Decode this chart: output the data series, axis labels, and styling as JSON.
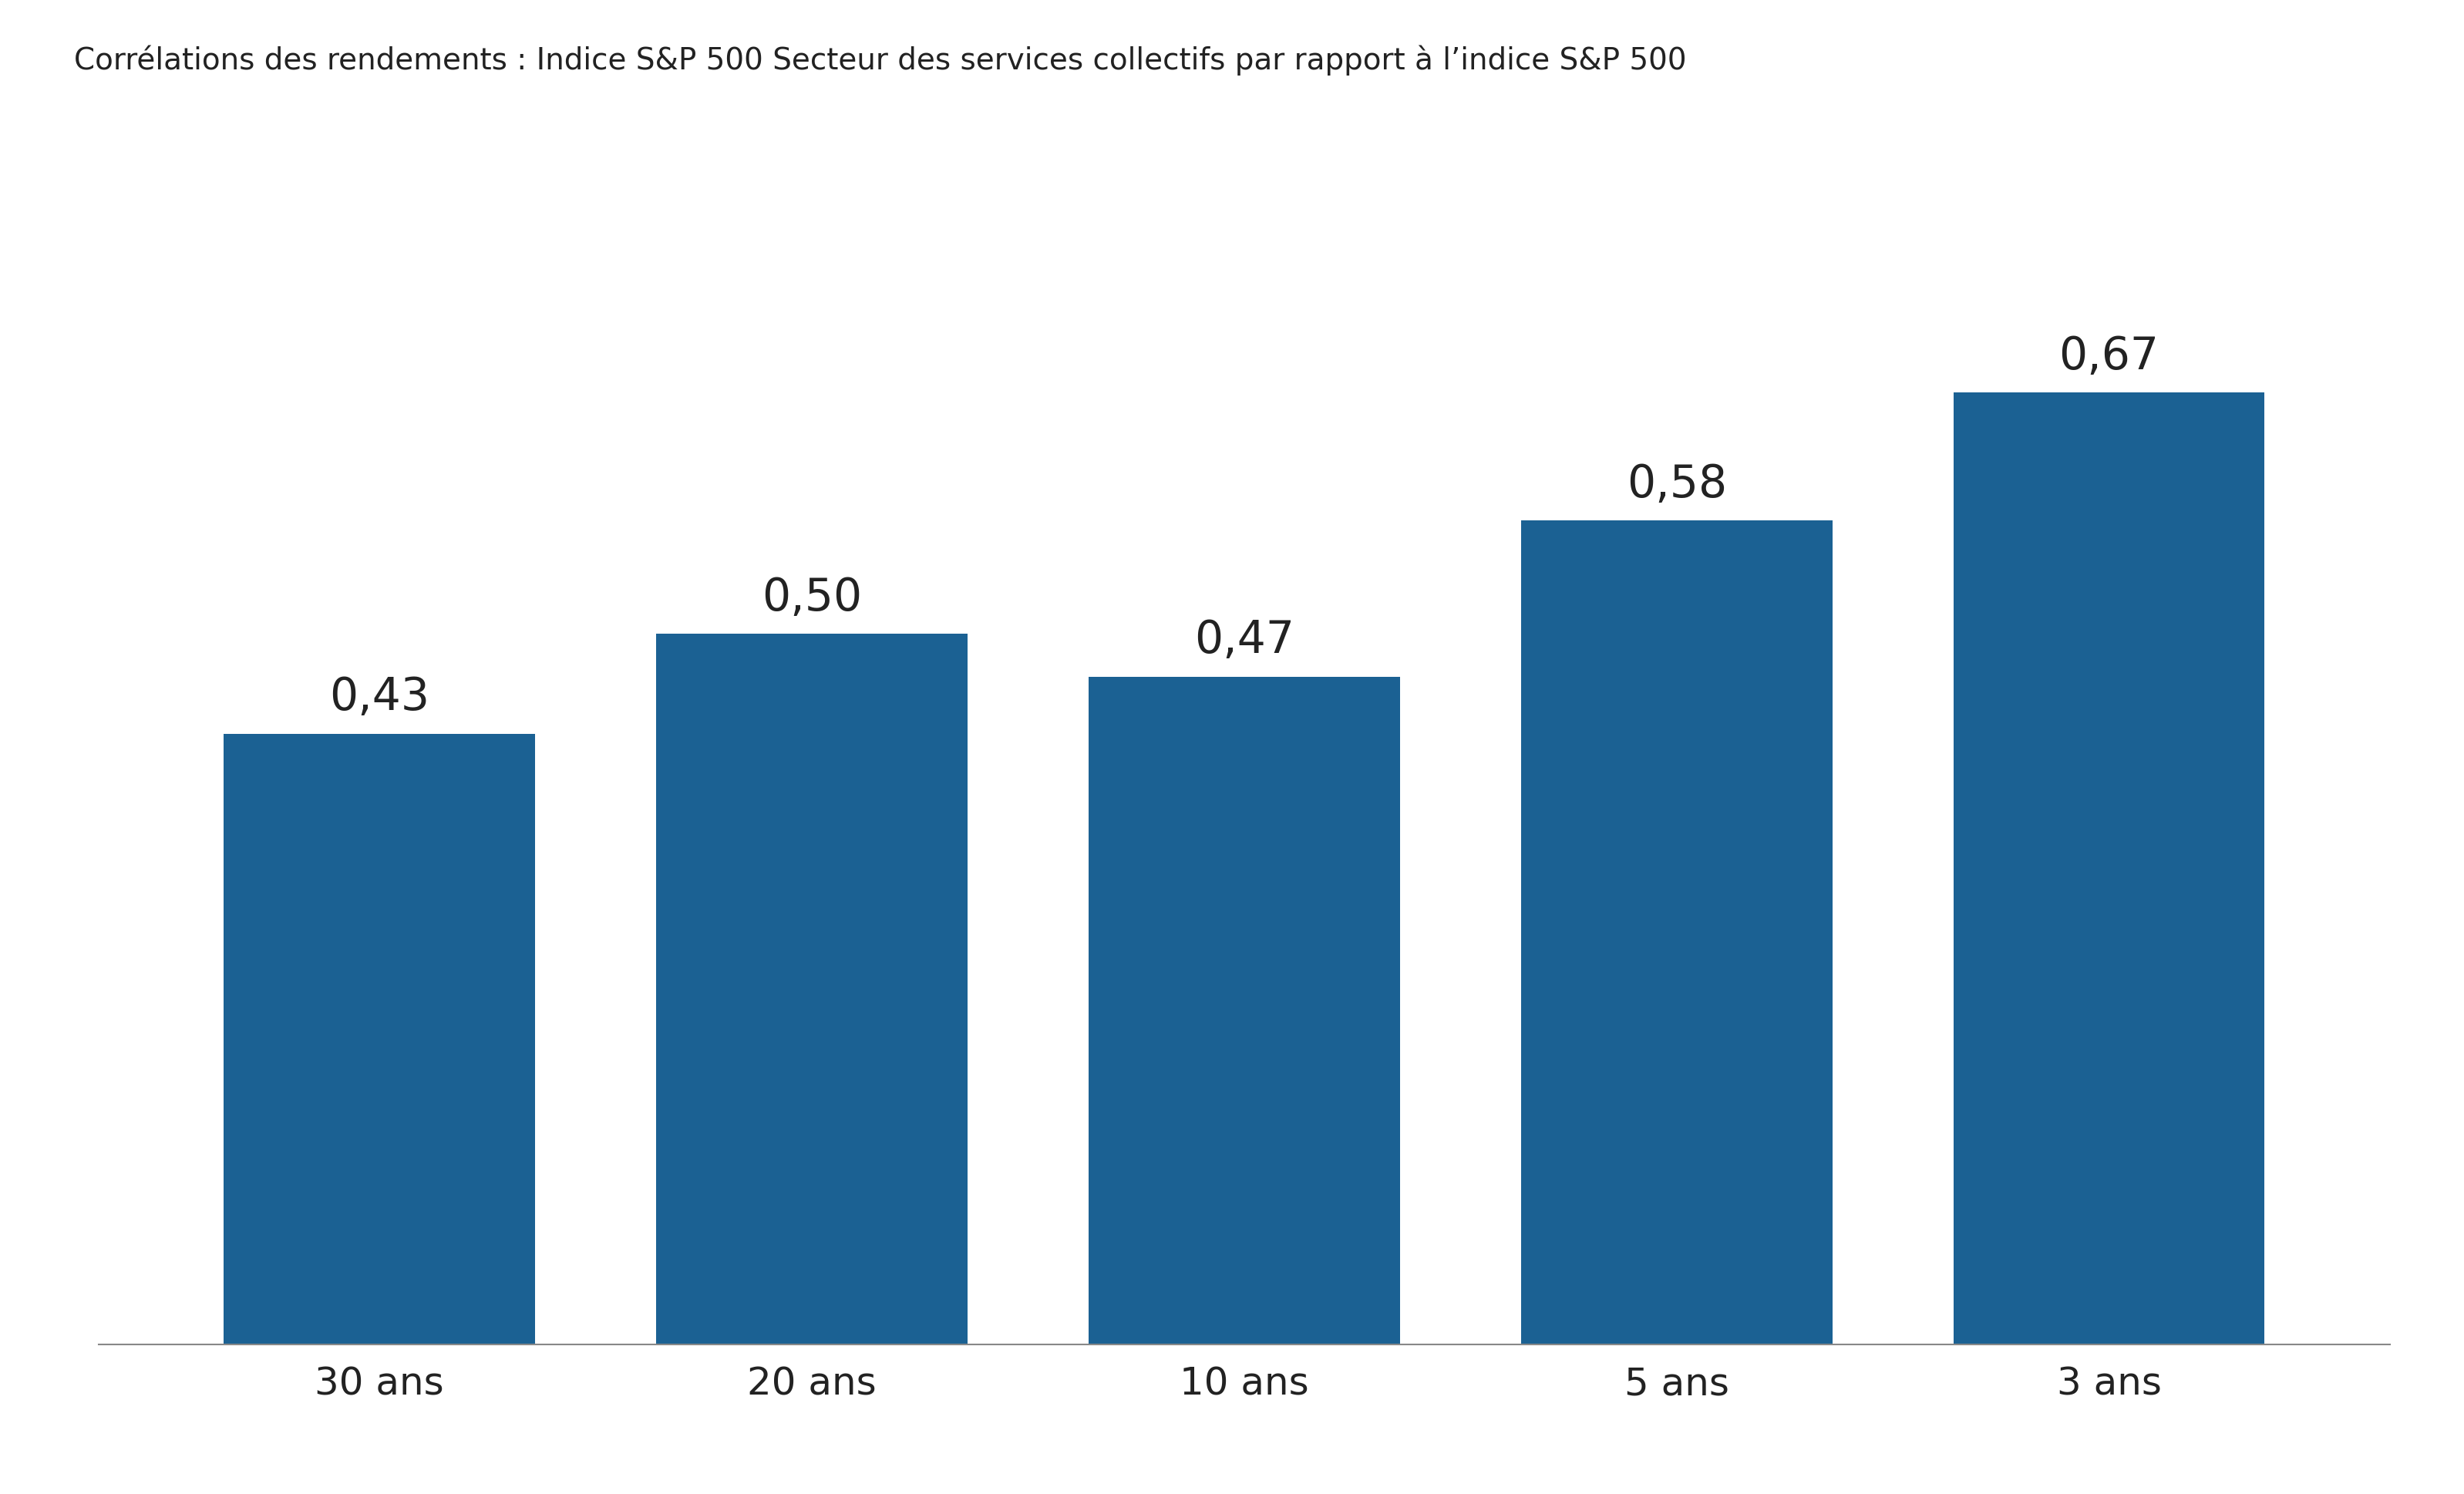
{
  "title": "Corrélations des rendements : Indice S&P 500 Secteur des services collectifs par rapport à l’indice S&P 500",
  "categories": [
    "30 ans",
    "20 ans",
    "10 ans",
    "5 ans",
    "3 ans"
  ],
  "values": [
    0.43,
    0.5,
    0.47,
    0.58,
    0.67
  ],
  "bar_color": "#1b6193",
  "background_color": "#ffffff",
  "text_color": "#222222",
  "title_color": "#222222",
  "title_fontsize": 28,
  "tick_fontsize": 36,
  "value_fontsize": 42,
  "ylim": [
    0,
    0.82
  ],
  "bar_width": 0.72
}
